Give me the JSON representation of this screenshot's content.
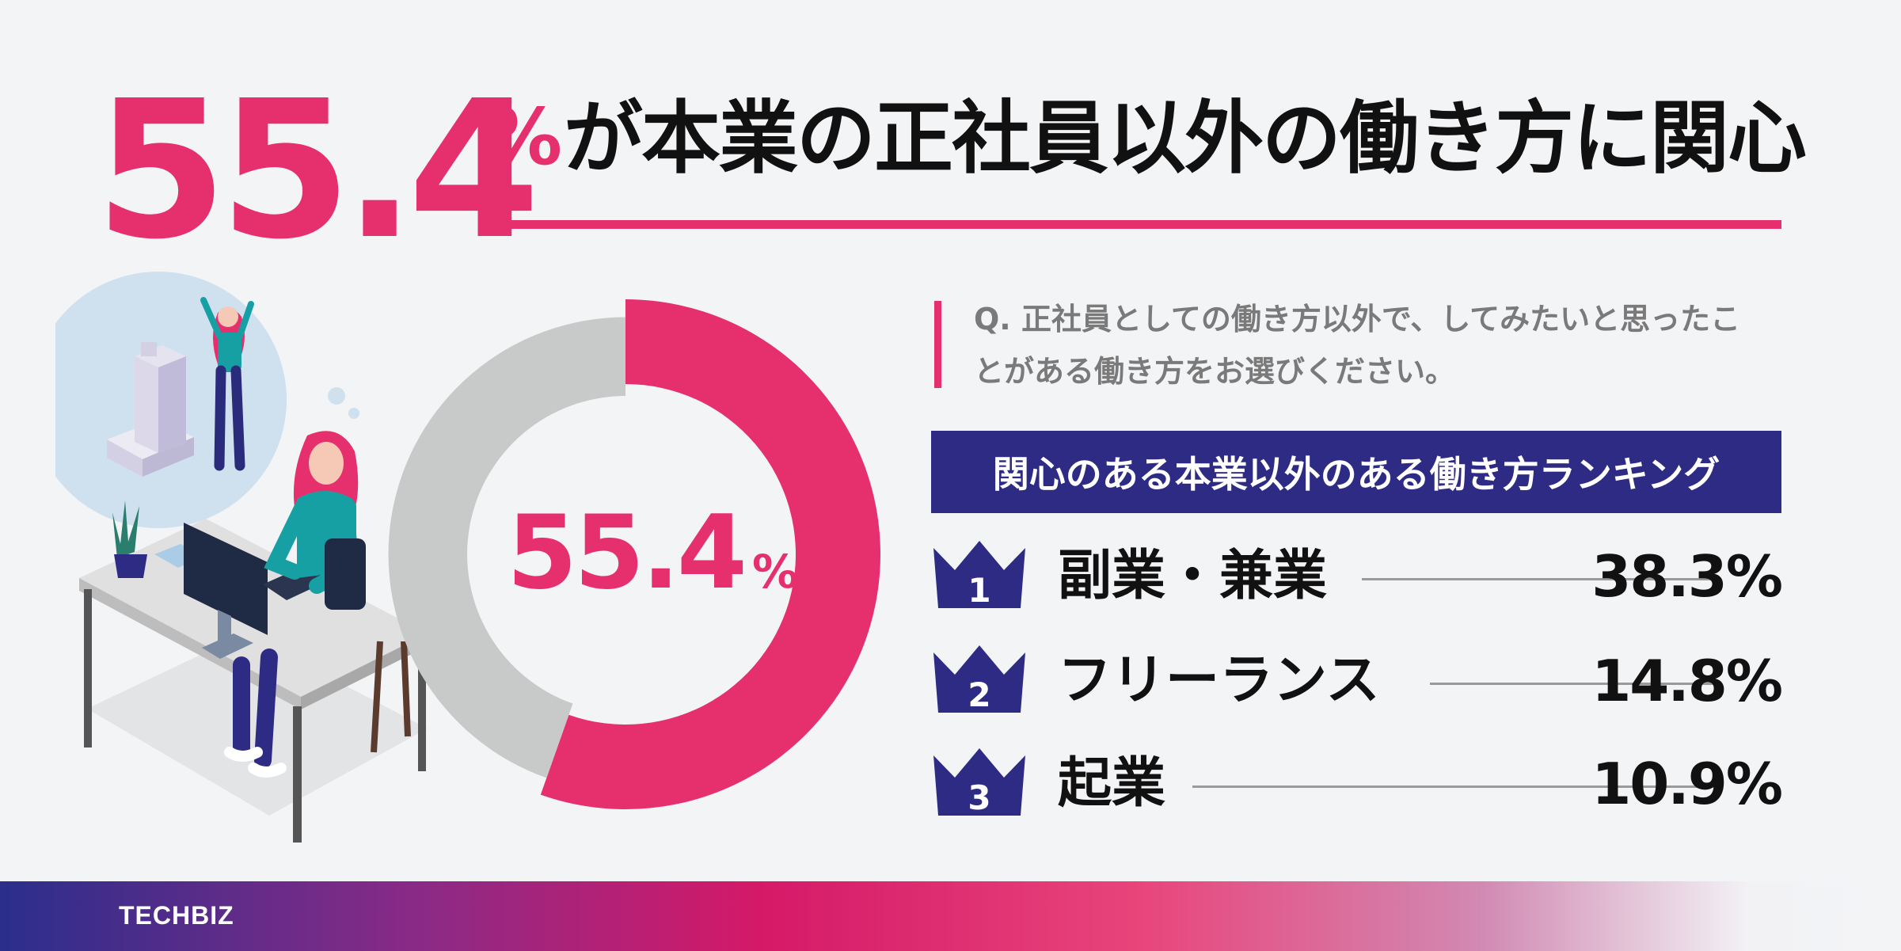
{
  "headline": {
    "number": "55.4",
    "percent_sign": "%",
    "text": "が本業の正社員以外の働き方に関心"
  },
  "question": {
    "text": "Q. 正社員としての働き方以外で、してみたいと思ったことがある働き方をお選びください。"
  },
  "ranking": {
    "heading": "関心のある本業以外のある働き方ランキング",
    "items": [
      {
        "rank": "1",
        "label": "副業・兼業",
        "value_text": "38.3%",
        "value": 38.3
      },
      {
        "rank": "2",
        "label": "フリーランス",
        "value_text": "14.8%",
        "value": 14.8
      },
      {
        "rank": "3",
        "label": "起業",
        "value_text": "10.9%",
        "value": 10.9
      }
    ]
  },
  "donut": {
    "center_value": "55.4",
    "center_unit": "%"
  },
  "chart_data": {
    "type": "pie",
    "values": [
      55.4,
      44.6
    ],
    "colors": [
      "#e6306e",
      "#c8c9c9"
    ],
    "center_label": "55.4%"
  },
  "colors": {
    "accent": "#e6306e",
    "navy": "#2e2b85",
    "gray": "#c8c9c9"
  },
  "footer": {
    "brand": "TECHBIZ"
  }
}
